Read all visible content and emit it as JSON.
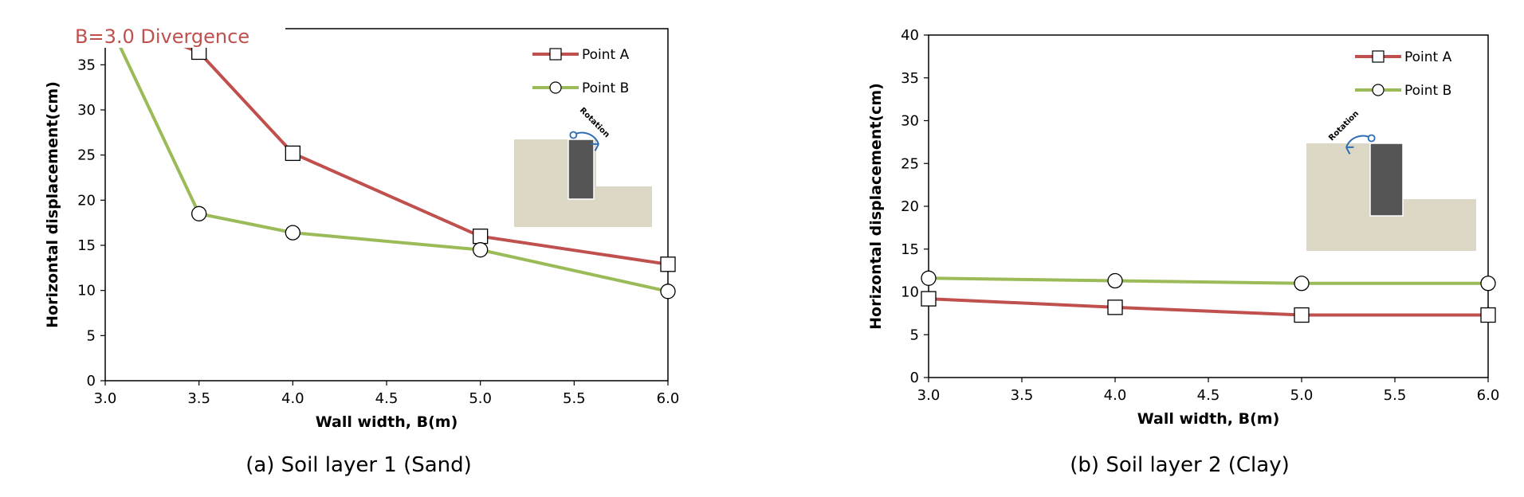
{
  "figure": {
    "captions": [
      "(a) Soil layer 1 (Sand)",
      "(b) Soil layer 2 (Clay)"
    ]
  },
  "chart_data": [
    {
      "type": "line",
      "title": "",
      "caption": "(a) Soil layer 1 (Sand)",
      "xlabel": "Wall width, B(m)",
      "ylabel": "Horizontal displacement(cm)",
      "xlim": [
        3.0,
        6.0
      ],
      "ylim": [
        0,
        39
      ],
      "xticks": [
        "3.0",
        "3.5",
        "4.0",
        "4.5",
        "5.0",
        "5.5",
        "6.0"
      ],
      "yticks": [
        0,
        5,
        10,
        15,
        20,
        25,
        30,
        35
      ],
      "annotation": "B=3.0 Divergence",
      "inset": {
        "label": "Rotation",
        "direction": "clockwise"
      },
      "legend_position": "top-right",
      "grid": false,
      "series": [
        {
          "name": "Point A",
          "color": "#c0504d",
          "marker": "square",
          "x": [
            3.0,
            3.5,
            4.0,
            5.0,
            6.0
          ],
          "y": [
            40.5,
            36.4,
            25.2,
            16.0,
            12.9
          ],
          "marker_shown": [
            false,
            true,
            true,
            true,
            true
          ]
        },
        {
          "name": "Point B",
          "color": "#9bbb59",
          "marker": "circle",
          "x": [
            3.0,
            3.5,
            4.0,
            5.0,
            6.0
          ],
          "y": [
            40.5,
            18.5,
            16.4,
            14.5,
            9.9
          ],
          "marker_shown": [
            false,
            true,
            true,
            true,
            true
          ]
        }
      ]
    },
    {
      "type": "line",
      "title": "",
      "caption": "(b) Soil layer 2 (Clay)",
      "xlabel": "Wall width, B(m)",
      "ylabel": "Horizontal displacement(cm)",
      "xlim": [
        3.0,
        6.0
      ],
      "ylim": [
        0,
        40
      ],
      "xticks": [
        "3.0",
        "3.5",
        "4.0",
        "4.5",
        "5.0",
        "5.5",
        "6.0"
      ],
      "yticks": [
        0,
        5,
        10,
        15,
        20,
        25,
        30,
        35,
        40
      ],
      "inset": {
        "label": "Rotation",
        "direction": "counter-clockwise"
      },
      "legend_position": "top-right",
      "grid": false,
      "series": [
        {
          "name": "Point A",
          "color": "#c0504d",
          "marker": "square",
          "x": [
            3.0,
            4.0,
            5.0,
            6.0
          ],
          "y": [
            9.2,
            8.2,
            7.3,
            7.3
          ],
          "marker_shown": [
            true,
            true,
            true,
            true
          ]
        },
        {
          "name": "Point B",
          "color": "#9bbb59",
          "marker": "circle",
          "x": [
            3.0,
            4.0,
            5.0,
            6.0
          ],
          "y": [
            11.6,
            11.3,
            11.0,
            11.0
          ],
          "marker_shown": [
            true,
            true,
            true,
            true
          ]
        }
      ]
    }
  ]
}
